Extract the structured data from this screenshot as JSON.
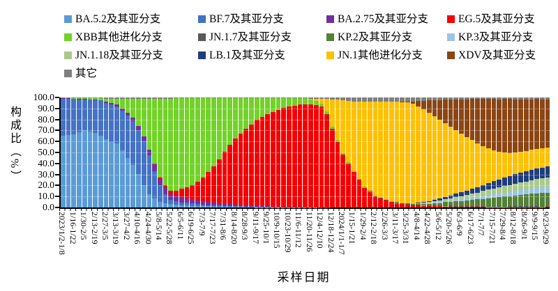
{
  "y_axis": {
    "title": "构成比（%）",
    "ticks": [
      "100.0",
      "90.0",
      "80.0",
      "70.0",
      "60.0",
      "50.0",
      "40.0",
      "30.0",
      "20.0",
      "10.0",
      "0.0"
    ]
  },
  "x_axis": {
    "title": "采样日期"
  },
  "chart_data": {
    "type": "bar",
    "stacked": true,
    "normalized_percent": true,
    "legend_position": "top",
    "grid": "faint-dotted-horizontal",
    "ylabel": "构成比（%）",
    "xlabel": "采样日期",
    "ylim": [
      0,
      100
    ],
    "bars_total": 91,
    "label_every_n_bars": 2,
    "categories": [
      "2023/1/2-1/8",
      "1/16-1/22",
      "1/30-2/5",
      "2/13-2/19",
      "2/27-3/5",
      "3/13-3/19",
      "3/27-4/2",
      "4/10-4/16",
      "4/24-4/30",
      "5/8-5/14",
      "5/22-5/28",
      "6/5-6/11",
      "6/19-6/25",
      "7/3-7/9",
      "7/17-7/23",
      "7/31-8/6",
      "8/14-8/20",
      "8/28-9/3",
      "9/11-9/17",
      "9/25-10/1",
      "10/9-10/15",
      "10/23-10/29",
      "11/6-11/12",
      "11/20-11/26",
      "12/4-12/10",
      "12/18-12/24",
      "2024/1/1-1/7",
      "1/15-1/21",
      "1/29-2/4",
      "2/12-2/18",
      "2/26-3/3",
      "3/11-3/17",
      "3/25-3/31",
      "4/8-4/14",
      "4/22-4/28",
      "5/6-5/12",
      "5/20-5/26",
      "6/3-6/9",
      "6/17-6/23",
      "7/1-7/7",
      "7/15-7/21",
      "7/29-8/4",
      "8/12-8/18",
      "8/26-9/1",
      "9/9-9/15",
      "9/23-9/29"
    ],
    "series": [
      {
        "name": "BA.5.2及其亚分支",
        "color": "#5B9BD5",
        "values": [
          65,
          66,
          67,
          68,
          70,
          69,
          68,
          66,
          62,
          60,
          58,
          52,
          45,
          38,
          30,
          20,
          12,
          8,
          5,
          4,
          3,
          2.5,
          2,
          2,
          1.5,
          1.2,
          1,
          1,
          0.8,
          0.7,
          0.6,
          0.6,
          0.5,
          0.5,
          0.4,
          0.4,
          0.3,
          0.3,
          0.2,
          0.2,
          0.2,
          0.1,
          0.1,
          0.1,
          0.1,
          0.1,
          0.1,
          0.1,
          0,
          0,
          0,
          0,
          0,
          0,
          0,
          0,
          0,
          0,
          0,
          0,
          0,
          0,
          0,
          0,
          0,
          0,
          0,
          0,
          0,
          0,
          0,
          0,
          0,
          0,
          0,
          0,
          0,
          0,
          0,
          0,
          0,
          0,
          0,
          0,
          0,
          0,
          0,
          0,
          0,
          0,
          0
        ]
      },
      {
        "name": "BF.7及其亚分支",
        "color": "#4472C4",
        "values": [
          34,
          33,
          32,
          30,
          28,
          29,
          30,
          32,
          33,
          34,
          34,
          36,
          38,
          40,
          40,
          40,
          35,
          25,
          15,
          8,
          4,
          3,
          2.5,
          2.2,
          2,
          1.8,
          1.5,
          1.2,
          1,
          0.9,
          0.8,
          0.7,
          0.6,
          0.5,
          0.5,
          0.4,
          0.4,
          0.3,
          0.3,
          0.2,
          0.2,
          0.1,
          0.1,
          0.1,
          0.1,
          0.1,
          0.1,
          0.1,
          0,
          0,
          0,
          0,
          0,
          0,
          0,
          0,
          0,
          0,
          0,
          0,
          0,
          0,
          0,
          0,
          0,
          0,
          0,
          0,
          0,
          0,
          0,
          0,
          0,
          0,
          0,
          0,
          0,
          0,
          0,
          0,
          0,
          0,
          0,
          0,
          0,
          0,
          0,
          0,
          0,
          0,
          0
        ]
      },
      {
        "name": "BA.2.75及其亚分支",
        "color": "#7030A0",
        "values": [
          0.5,
          0.5,
          0.5,
          0.5,
          0.5,
          0.5,
          0.5,
          0.5,
          1,
          1.5,
          2,
          2.2,
          2.5,
          3,
          3.5,
          4,
          5,
          6,
          6,
          6,
          5,
          5,
          4.5,
          4.2,
          4,
          3.5,
          3,
          2.8,
          2.5,
          2.2,
          2,
          1.8,
          1.5,
          1.2,
          1,
          0.9,
          0.8,
          0.6,
          0.5,
          0.4,
          0.4,
          0.3,
          0.3,
          0.2,
          0.2,
          0.1,
          0.1,
          0.1,
          0.1,
          0.1,
          0,
          0,
          0,
          0,
          0,
          0,
          0,
          0,
          0,
          0,
          0,
          0,
          0,
          0,
          0,
          0,
          0,
          0,
          0,
          0,
          0,
          0,
          0,
          0,
          0,
          0,
          0,
          0,
          0,
          0,
          0,
          0,
          0,
          0,
          0,
          0,
          0,
          0,
          0,
          0,
          0
        ]
      },
      {
        "name": "EG.5及其亚分支",
        "color": "#F50002",
        "values": [
          0,
          0,
          0,
          0,
          0,
          0,
          0,
          0,
          0,
          0,
          0,
          0,
          0,
          0,
          0,
          0,
          0,
          0.5,
          1,
          2,
          3,
          5,
          8,
          10,
          13,
          17,
          22,
          27,
          33,
          40,
          47,
          54,
          60,
          65,
          70,
          74,
          78,
          81,
          84,
          86,
          88,
          90,
          91,
          92,
          93,
          93.5,
          94,
          93.5,
          92,
          85,
          72,
          60,
          48,
          40,
          32,
          25,
          18,
          14,
          10,
          8,
          6,
          5,
          4,
          3,
          2.5,
          2,
          1.8,
          1.5,
          1.2,
          1.1,
          1,
          0.9,
          0.8,
          0.7,
          0.6,
          0.5,
          0.5,
          0.4,
          0.4,
          0.3,
          0.3,
          0.3,
          0.3,
          0.2,
          0.2,
          0.2,
          0.2,
          0.2,
          0.2,
          0.3,
          0.5
        ]
      },
      {
        "name": "XBB其他进化分支",
        "color": "#72D228",
        "values": [
          0,
          0,
          0.5,
          0.8,
          1,
          1.2,
          1.5,
          1.8,
          3,
          4,
          5,
          9,
          13,
          17,
          25,
          34,
          46,
          59,
          72,
          79,
          84,
          84,
          83,
          81.5,
          79,
          76,
          72,
          67.5,
          62,
          55.5,
          49,
          42.5,
          37,
          32.5,
          28,
          24,
          20,
          17.5,
          14.5,
          12.5,
          11,
          9,
          8,
          7,
          6,
          5.5,
          4.5,
          4,
          3,
          2.5,
          2,
          1.8,
          1.5,
          1.2,
          1,
          0.8,
          0.7,
          0.6,
          0.5,
          0.5,
          0.4,
          0.4,
          0.3,
          0.3,
          0.3,
          0.2,
          0.2,
          0.2,
          0.2,
          0.1,
          0.1,
          0.1,
          0.1,
          0.1,
          0.1,
          0.1,
          0.1,
          0.1,
          0.1,
          0.1,
          0.1,
          0.1,
          0.1,
          0.1,
          0.1,
          0.1,
          0.1,
          0.1,
          0.1,
          0.1,
          0.1
        ]
      },
      {
        "name": "JN.1.7及其亚分支",
        "color": "#595959",
        "values": [
          0,
          0,
          0,
          0,
          0,
          0,
          0,
          0,
          0,
          0,
          0,
          0,
          0,
          0,
          0,
          0,
          0,
          0,
          0,
          0,
          0,
          0,
          0,
          0,
          0,
          0,
          0,
          0,
          0,
          0,
          0,
          0,
          0,
          0,
          0,
          0,
          0,
          0,
          0,
          0,
          0,
          0,
          0,
          0,
          0,
          0,
          0,
          0,
          0,
          0,
          0,
          0,
          0,
          0,
          0,
          0,
          0.3,
          0.3,
          0.3,
          0.3,
          0.3,
          0.5,
          0.5,
          0.5,
          0.5,
          0.5,
          0.5,
          0.5,
          0.5,
          0.5,
          0.5,
          0.8,
          0.8,
          0.8,
          0.8,
          0.8,
          0.8,
          0.8,
          0.8,
          0.8,
          0.8,
          0.8,
          0.8,
          0.8,
          0.8,
          0.8,
          0.8,
          0.8,
          0.8,
          0.8,
          0.8
        ]
      },
      {
        "name": "KP.2及其亚分支",
        "color": "#538135",
        "values": [
          0,
          0,
          0,
          0,
          0,
          0,
          0,
          0,
          0,
          0,
          0,
          0,
          0,
          0,
          0,
          0,
          0,
          0,
          0,
          0,
          0,
          0,
          0,
          0,
          0,
          0,
          0,
          0,
          0,
          0,
          0,
          0,
          0,
          0,
          0,
          0,
          0,
          0,
          0,
          0,
          0,
          0,
          0,
          0,
          0,
          0,
          0,
          0,
          0,
          0,
          0,
          0,
          0,
          0,
          0,
          0,
          0,
          0,
          0,
          0,
          0,
          0,
          0,
          0,
          0.3,
          0.5,
          0.8,
          1.2,
          1.5,
          2,
          2.5,
          3,
          3.5,
          4,
          4.5,
          5,
          5.5,
          6,
          6.5,
          7,
          7.5,
          8,
          8.5,
          9,
          9.5,
          10,
          10.5,
          11,
          11.5,
          11.8,
          12
        ]
      },
      {
        "name": "KP.3及其亚分支",
        "color": "#9DC3E6",
        "values": [
          0,
          0,
          0,
          0,
          0,
          0,
          0,
          0,
          0,
          0,
          0,
          0,
          0,
          0,
          0,
          0,
          0,
          0,
          0,
          0,
          0,
          0,
          0,
          0,
          0,
          0,
          0,
          0,
          0,
          0,
          0,
          0,
          0,
          0,
          0,
          0,
          0,
          0,
          0,
          0,
          0,
          0,
          0,
          0,
          0,
          0,
          0,
          0,
          0,
          0,
          0,
          0,
          0,
          0,
          0,
          0,
          0,
          0,
          0,
          0,
          0,
          0,
          0,
          0,
          0,
          0,
          0.2,
          0.3,
          0.5,
          0.8,
          1,
          1.1,
          1.2,
          1.4,
          1.5,
          1.8,
          2,
          2.2,
          2.5,
          2.8,
          3,
          3.2,
          3.5,
          3.8,
          4,
          4.2,
          4.5,
          4.8,
          5,
          5.2,
          5.5
        ]
      },
      {
        "name": "JN.1.18及其亚分支",
        "color": "#A9C98D",
        "values": [
          0,
          0,
          0,
          0,
          0,
          0,
          0,
          0,
          0,
          0,
          0,
          0,
          0,
          0,
          0,
          0,
          0,
          0,
          0,
          0,
          0,
          0,
          0,
          0,
          0,
          0,
          0,
          0,
          0,
          0,
          0,
          0,
          0,
          0,
          0,
          0,
          0,
          0,
          0,
          0,
          0,
          0,
          0,
          0,
          0,
          0,
          0,
          0,
          0,
          0,
          0,
          0,
          0,
          0,
          0,
          0,
          0,
          0,
          0,
          0,
          0,
          0,
          0,
          0,
          0.2,
          0.4,
          0.6,
          0.8,
          1,
          1.2,
          1.5,
          1.8,
          2,
          2.4,
          2.8,
          3.2,
          3.5,
          4,
          4.5,
          5,
          5.5,
          5.8,
          6,
          6.2,
          6.5,
          6.8,
          7,
          7.2,
          7.5,
          7.8,
          8
        ]
      },
      {
        "name": "LB.1及其亚分支",
        "color": "#1F3D7E",
        "values": [
          0,
          0,
          0,
          0,
          0,
          0,
          0,
          0,
          0,
          0,
          0,
          0,
          0,
          0,
          0,
          0,
          0,
          0,
          0,
          0,
          0,
          0,
          0,
          0,
          0,
          0,
          0,
          0,
          0,
          0,
          0,
          0,
          0,
          0,
          0,
          0,
          0,
          0,
          0,
          0,
          0,
          0,
          0,
          0,
          0,
          0,
          0,
          0,
          0,
          0,
          0,
          0,
          0,
          0,
          0,
          0,
          0,
          0,
          0,
          0,
          0,
          0,
          0,
          0,
          0,
          0,
          0.3,
          0.5,
          0.8,
          1.1,
          1.5,
          2,
          2.5,
          3,
          3.5,
          4,
          4.5,
          5,
          5.5,
          6,
          6.5,
          7,
          7.5,
          8,
          8.5,
          8.8,
          9,
          9.2,
          9.5,
          9.8,
          10
        ]
      },
      {
        "name": "JN.1其他进化分支",
        "color": "#FFC000",
        "values": [
          0,
          0,
          0,
          0,
          0,
          0,
          0,
          0,
          0,
          0,
          0,
          0,
          0,
          0,
          0,
          0,
          0,
          0,
          0,
          0,
          0,
          0,
          0,
          0,
          0,
          0,
          0,
          0,
          0,
          0,
          0,
          0,
          0,
          0,
          0,
          0,
          0,
          0,
          0,
          0,
          0,
          0,
          0,
          0,
          0,
          0,
          1,
          2,
          4.5,
          11,
          25,
          37,
          48,
          56,
          63,
          70,
          77,
          81,
          85,
          87,
          89,
          90,
          91,
          92,
          92,
          91,
          89,
          86,
          81.5,
          77,
          72,
          67,
          62.5,
          58,
          53,
          48,
          44,
          39.5,
          35,
          31,
          27.5,
          24.5,
          22,
          20.5,
          19,
          18.5,
          18,
          17.8,
          17.5,
          17.5,
          17.5
        ]
      },
      {
        "name": "XDV及其亚分支",
        "color": "#8B4513",
        "values": [
          0,
          0,
          0,
          0,
          0,
          0,
          0,
          0,
          0,
          0,
          0,
          0,
          0,
          0,
          0,
          0,
          0,
          0,
          0,
          0,
          0,
          0,
          0,
          0,
          0,
          0,
          0,
          0,
          0,
          0,
          0,
          0,
          0,
          0,
          0,
          0,
          0,
          0,
          0,
          0,
          0,
          0,
          0,
          0,
          0,
          0,
          0,
          0,
          0,
          0,
          0,
          0,
          0,
          0,
          0,
          0,
          0,
          0,
          0,
          0,
          0,
          0,
          0,
          0.5,
          1,
          2.5,
          5,
          8,
          11.5,
          14.5,
          18,
          21,
          24.5,
          27.5,
          31,
          34,
          37,
          39.5,
          42,
          44,
          46,
          47,
          47.5,
          48,
          47.5,
          47,
          46,
          45,
          44,
          43.5,
          43
        ]
      },
      {
        "name": "其它",
        "color": "#7F7F7F",
        "values": [
          0.5,
          0.5,
          0.5,
          0.5,
          0.5,
          0.5,
          0.5,
          0.5,
          1,
          1,
          1,
          1,
          1,
          1,
          1,
          1,
          1,
          1,
          1,
          1,
          1,
          0.5,
          0.5,
          0.5,
          0.5,
          0.5,
          0.5,
          0.5,
          0.5,
          0.5,
          0.5,
          0.5,
          0.5,
          0.5,
          0.5,
          0.5,
          0.5,
          0.5,
          0.5,
          0.5,
          0.5,
          0.5,
          0.5,
          0.5,
          0.5,
          0.5,
          1,
          1,
          1,
          1.5,
          2,
          2.2,
          2.5,
          3,
          3.5,
          3.5,
          3.8,
          3.8,
          3.8,
          3.8,
          3.8,
          3.8,
          3.8,
          3.8,
          3.5,
          3.5,
          3.2,
          3,
          2.8,
          2.5,
          2.2,
          2,
          2,
          2,
          1.8,
          1.8,
          1.5,
          1.5,
          1.5,
          1.5,
          1.5,
          1.5,
          1.5,
          1.5,
          1.5,
          1.5,
          1.5,
          1.5,
          1.5,
          1.8,
          2
        ]
      }
    ]
  }
}
